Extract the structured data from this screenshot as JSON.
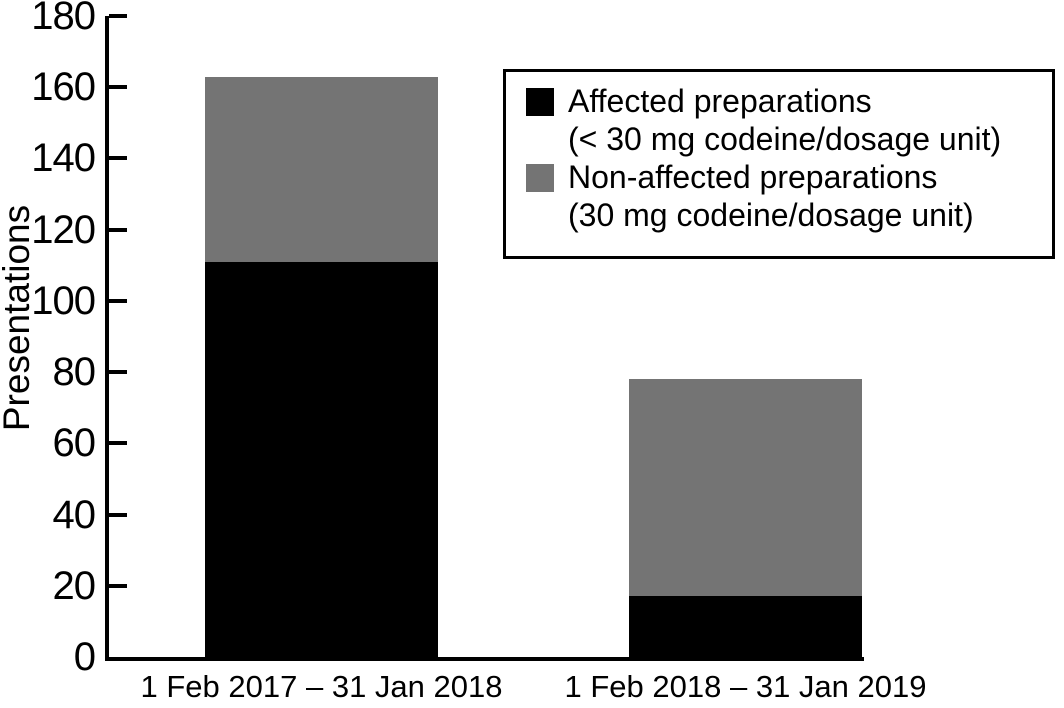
{
  "figure": {
    "background": "#ffffff",
    "axis_color": "#000000",
    "text_color": "#000000"
  },
  "chart_data": {
    "type": "bar",
    "stacked": true,
    "title": "",
    "xlabel": "",
    "ylabel": "Presentations",
    "ylim": [
      0,
      180
    ],
    "yticks": [
      0,
      20,
      40,
      60,
      80,
      100,
      120,
      140,
      160,
      180
    ],
    "grid": false,
    "categories": [
      "1 Feb 2017 – 31 Jan 2018",
      "1 Feb 2018 – 31 Jan 2019"
    ],
    "series": [
      {
        "name": "Affected preparations (< 30 mg codeine/dosage unit)",
        "color": "#000000",
        "values": [
          111,
          17
        ]
      },
      {
        "name": "Non-affected preparations (30 mg codeine/dosage unit)",
        "color": "#747474",
        "values": [
          52,
          61
        ]
      }
    ],
    "stack_totals": [
      163,
      78
    ],
    "legend_position": "upper-right-inside",
    "legend": [
      {
        "lines": [
          "Affected preparations",
          "(< 30 mg codeine/dosage unit)"
        ]
      },
      {
        "lines": [
          "Non-affected preparations",
          "(30 mg codeine/dosage unit)"
        ]
      }
    ]
  }
}
